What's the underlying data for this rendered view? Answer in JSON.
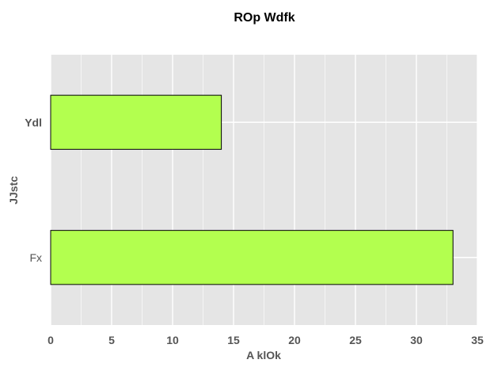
{
  "chart_data": {
    "type": "bar",
    "orientation": "horizontal",
    "title": "ROp Wdfk",
    "xlabel": "A klOk",
    "ylabel": "JJstc",
    "categories": [
      "Ydl",
      "Fx"
    ],
    "values": [
      14,
      33
    ],
    "xlim": [
      0,
      35
    ],
    "xticks": [
      0,
      5,
      10,
      15,
      20,
      25,
      30,
      35
    ],
    "grid": true,
    "legend": "none",
    "colors": {
      "bar_fill": "#b3ff4f",
      "bar_stroke": "#000000",
      "panel_background": "#e5e5e5",
      "grid": "#ffffff"
    }
  }
}
